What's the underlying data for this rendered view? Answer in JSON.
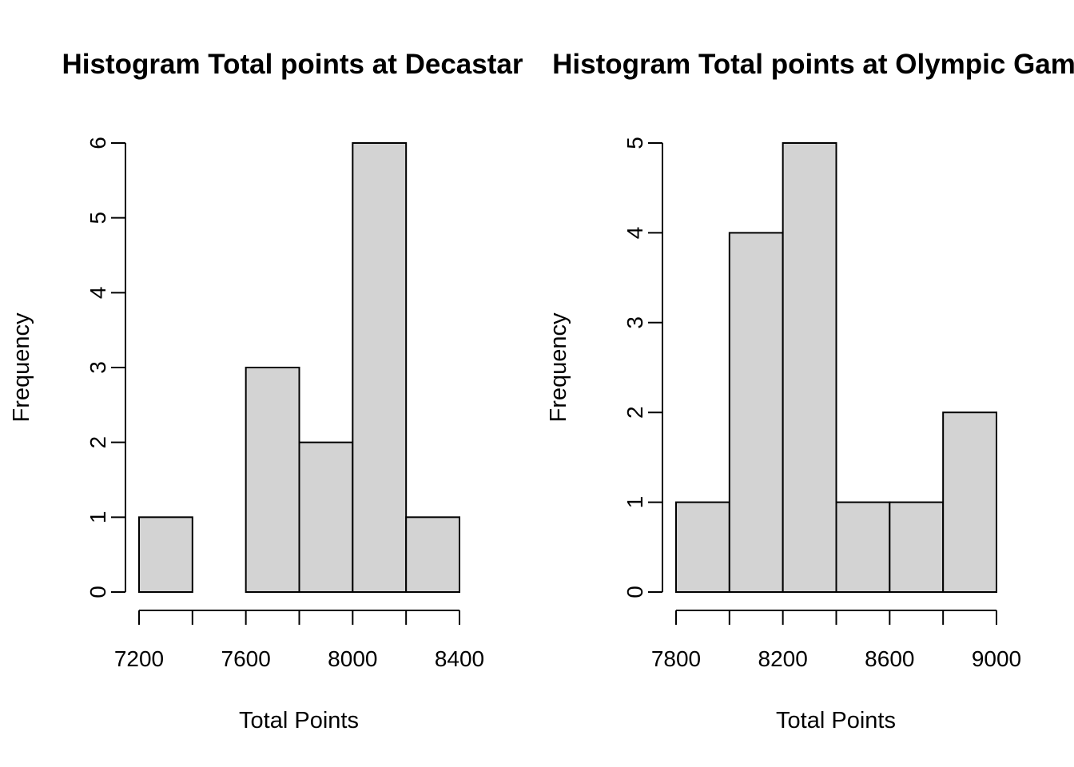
{
  "chart_data": [
    {
      "type": "bar",
      "title": "Histogram Total points at Decastar",
      "xlabel": "Total Points",
      "ylabel": "Frequency",
      "bin_edges": [
        7200,
        7400,
        7600,
        7800,
        8000,
        8200,
        8400
      ],
      "values": [
        1,
        0,
        3,
        2,
        6,
        1
      ],
      "xlim": [
        7200,
        8400
      ],
      "ylim": [
        0,
        6
      ],
      "x_ticks": [
        7200,
        7600,
        8000,
        8400
      ],
      "x_minor_ticks": [
        7200,
        7400,
        7600,
        7800,
        8000,
        8200,
        8400
      ],
      "y_ticks": [
        0,
        1,
        2,
        3,
        4,
        5,
        6
      ],
      "bar_color": "#d3d3d3",
      "grid": false
    },
    {
      "type": "bar",
      "title": "Histogram Total points at Olympic Games",
      "xlabel": "Total Points",
      "ylabel": "Frequency",
      "bin_edges": [
        7800,
        8000,
        8200,
        8400,
        8600,
        8800,
        9000
      ],
      "values": [
        1,
        4,
        5,
        1,
        1,
        2
      ],
      "xlim": [
        7800,
        9000
      ],
      "ylim": [
        0,
        5
      ],
      "x_ticks": [
        7800,
        8200,
        8600,
        9000
      ],
      "x_minor_ticks": [
        7800,
        8000,
        8200,
        8400,
        8600,
        8800,
        9000
      ],
      "y_ticks": [
        0,
        1,
        2,
        3,
        4,
        5
      ],
      "bar_color": "#d3d3d3",
      "grid": false
    }
  ]
}
